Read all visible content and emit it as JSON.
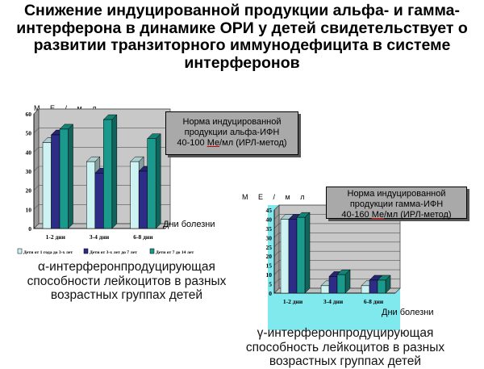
{
  "slide": {
    "title": "Снижение индуцированной продукции альфа- и гамма-интерферона в динамике ОРИ у детей свидетельствует о развитии транзиторного иммунодефицита в системе интерферонов"
  },
  "norm_alpha": {
    "line1": "Норма индуцированной",
    "line2": "продукции  альфа-ИФН",
    "line3a": "40-100 ",
    "line3b": "Ме",
    "line3c": "/мл (ИРЛ-метод)"
  },
  "norm_gamma": {
    "line1": "Норма индуцированной",
    "line2": "продукции гамма-ИФН",
    "line3a": "40-160 ",
    "line3b": "Ме",
    "line3c": "/мл (ИРЛ-метод)"
  },
  "captions": {
    "alpha": "α-интерферонпродуцирующая способности лейкоцитов в разных возрастных группах детей",
    "gamma": "γ-интерферонпродуцирующая способность лейкоцитов в разных возрастных группах детей"
  },
  "chart_data": [
    {
      "type": "bar",
      "ylabel": "М Е / м л",
      "xlabel": "Дни болезни",
      "ylim": [
        0,
        60
      ],
      "yticks": [
        "0",
        "10",
        "20",
        "30",
        "40",
        "50",
        "60"
      ],
      "categories": [
        "1-2 дни",
        "3-4 дни",
        "6-8 дни"
      ],
      "series": [
        {
          "name": "Дети от 1 года до 3-х лет",
          "values": [
            45,
            35,
            35
          ]
        },
        {
          "name": "Дети от 3-х лет до 7 лет",
          "values": [
            49,
            29,
            30
          ]
        },
        {
          "name": "Дети от 7 до 14 лет",
          "values": [
            52,
            57,
            47
          ]
        }
      ],
      "legend": "bottom",
      "colors": [
        "#ccf2f2",
        "#2d2d88",
        "#1a9a8c"
      ]
    },
    {
      "type": "bar",
      "ylabel": "М Е / м л",
      "xlabel": "Дни болезни",
      "ylim": [
        0,
        45
      ],
      "yticks": [
        "0",
        "5",
        "10",
        "15",
        "20",
        "25",
        "30",
        "35",
        "40",
        "45"
      ],
      "categories": [
        "1-2 дни",
        "3-4 дни",
        "6-8 дни"
      ],
      "series": [
        {
          "values": [
            40,
            4,
            4
          ]
        },
        {
          "values": [
            40,
            9,
            7
          ]
        },
        {
          "values": [
            41,
            10,
            7
          ]
        }
      ],
      "colors": [
        "#ccf2f2",
        "#2d2d88",
        "#1a9a8c"
      ]
    }
  ]
}
